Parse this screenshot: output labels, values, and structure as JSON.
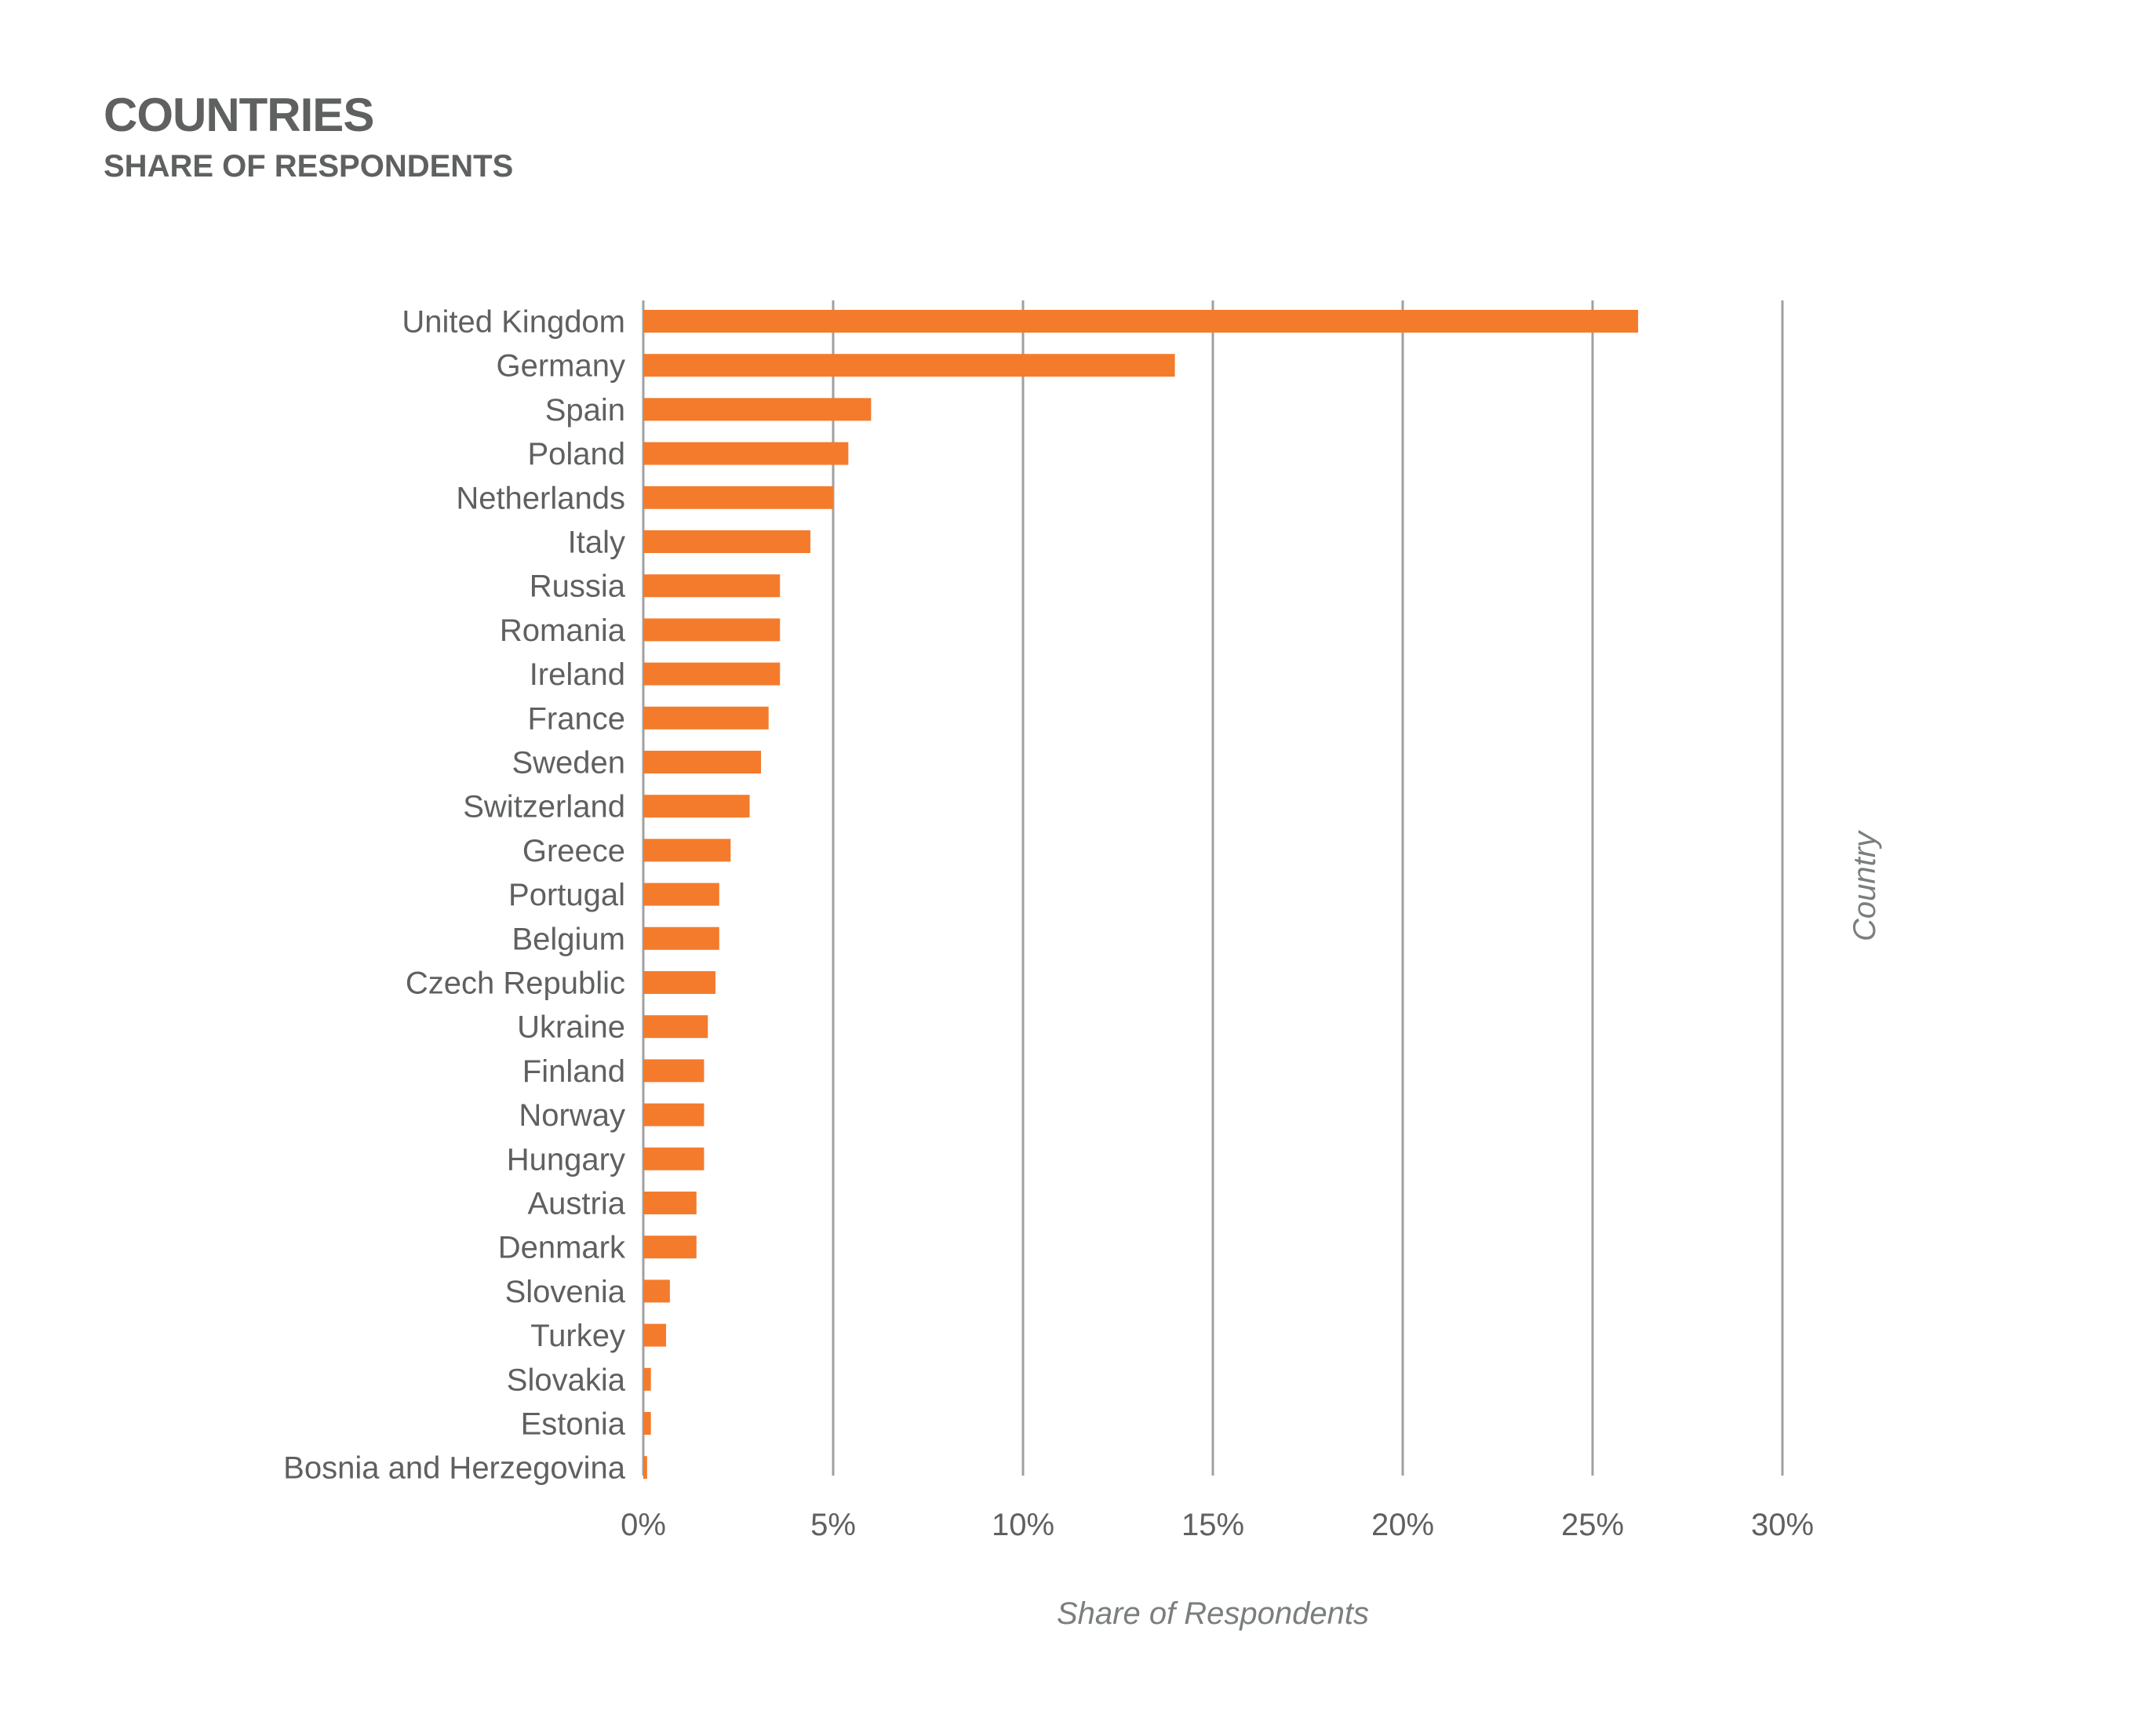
{
  "header": {
    "title": "COUNTRIES",
    "subtitle": "SHARE OF RESPONDENTS"
  },
  "colors": {
    "bar": "#f47b2c",
    "grid": "#a0a0a4",
    "text": "#5f6060",
    "axis_title": "#7a7e7e"
  },
  "chart_data": {
    "type": "bar",
    "orientation": "horizontal",
    "title": "COUNTRIES",
    "subtitle": "SHARE OF RESPONDENTS",
    "xlabel": "Share of Respondents",
    "ylabel": "Country",
    "xlim": [
      0,
      30
    ],
    "x_ticks": [
      0,
      5,
      10,
      15,
      20,
      25,
      30
    ],
    "x_tick_labels": [
      "0%",
      "5%",
      "10%",
      "15%",
      "20%",
      "25%",
      "30%"
    ],
    "grid": "vertical",
    "legend": "none",
    "categories": [
      "United Kingdom",
      "Germany",
      "Spain",
      "Poland",
      "Netherlands",
      "Italy",
      "Russia",
      "Romania",
      "Ireland",
      "France",
      "Sweden",
      "Switzerland",
      "Greece",
      "Portugal",
      "Belgium",
      "Czech Republic",
      "Ukraine",
      "Finland",
      "Norway",
      "Hungary",
      "Austria",
      "Denmark",
      "Slovenia",
      "Turkey",
      "Slovakia",
      "Estonia",
      "Bosnia and Herzegovina"
    ],
    "values": [
      26.2,
      14.0,
      6.0,
      5.4,
      5.0,
      4.4,
      3.6,
      3.6,
      3.6,
      3.3,
      3.1,
      2.8,
      2.3,
      2.0,
      2.0,
      1.9,
      1.7,
      1.6,
      1.6,
      1.6,
      1.4,
      1.4,
      0.7,
      0.6,
      0.2,
      0.2,
      0.1
    ],
    "unit": "%"
  }
}
